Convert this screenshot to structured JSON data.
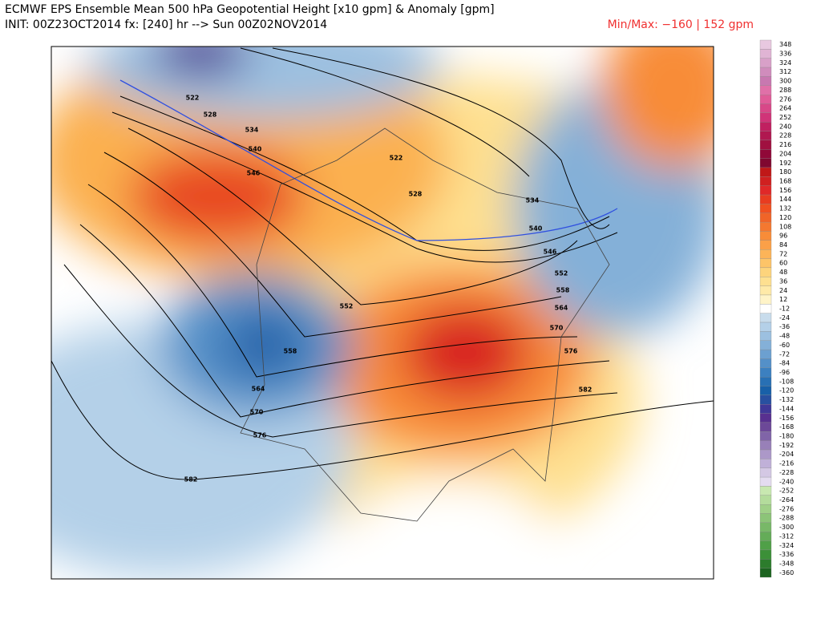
{
  "header": {
    "title": "ECMWF EPS Ensemble Mean 500 hPa Geopotential Height [x10 gpm] & Anomaly [gpm]",
    "init": "INIT: 00Z23OCT2014 fx: [240] hr --> Sun 00Z02NOV2014",
    "minmax": "Min/Max:  −160 |  152 gpm"
  },
  "colorbar": {
    "levels": [
      {
        "value": 348,
        "color": "#e8c8e0"
      },
      {
        "value": 336,
        "color": "#e0b4d4"
      },
      {
        "value": 324,
        "color": "#d8a0c8"
      },
      {
        "value": 312,
        "color": "#d08cbc"
      },
      {
        "value": 300,
        "color": "#c878b0"
      },
      {
        "value": 288,
        "color": "#e070a8"
      },
      {
        "value": 276,
        "color": "#e05c98"
      },
      {
        "value": 264,
        "color": "#d84888"
      },
      {
        "value": 252,
        "color": "#d03478"
      },
      {
        "value": 240,
        "color": "#c02060"
      },
      {
        "value": 228,
        "color": "#b01850"
      },
      {
        "value": 216,
        "color": "#a01040"
      },
      {
        "value": 204,
        "color": "#900838"
      },
      {
        "value": 192,
        "color": "#800830"
      },
      {
        "value": 180,
        "color": "#c01818"
      },
      {
        "value": 168,
        "color": "#d02020"
      },
      {
        "value": 156,
        "color": "#e02828"
      },
      {
        "value": 144,
        "color": "#e83c20"
      },
      {
        "value": 132,
        "color": "#f05020"
      },
      {
        "value": 120,
        "color": "#f06428"
      },
      {
        "value": 108,
        "color": "#f47830"
      },
      {
        "value": 96,
        "color": "#f88c38"
      },
      {
        "value": 84,
        "color": "#fba048"
      },
      {
        "value": 72,
        "color": "#fcb458"
      },
      {
        "value": 60,
        "color": "#fdc468"
      },
      {
        "value": 48,
        "color": "#fdd47c"
      },
      {
        "value": 36,
        "color": "#fee090"
      },
      {
        "value": 24,
        "color": "#ffeaa8"
      },
      {
        "value": 12,
        "color": "#fff4c8"
      },
      {
        "value": -12,
        "color": "#ffffff"
      },
      {
        "value": -24,
        "color": "#c8dcec"
      },
      {
        "value": -36,
        "color": "#b4d0e8"
      },
      {
        "value": -48,
        "color": "#9cc0e0"
      },
      {
        "value": -60,
        "color": "#84b0d8"
      },
      {
        "value": -72,
        "color": "#6ca0d0"
      },
      {
        "value": -84,
        "color": "#5490c8"
      },
      {
        "value": -96,
        "color": "#3c80c0"
      },
      {
        "value": -108,
        "color": "#2870b4"
      },
      {
        "value": -120,
        "color": "#1860a8"
      },
      {
        "value": -132,
        "color": "#2850a0"
      },
      {
        "value": -144,
        "color": "#403898"
      },
      {
        "value": -156,
        "color": "#583090"
      },
      {
        "value": -168,
        "color": "#6c4898"
      },
      {
        "value": -180,
        "color": "#8064a8"
      },
      {
        "value": -192,
        "color": "#9880b8"
      },
      {
        "value": -204,
        "color": "#ac98c8"
      },
      {
        "value": -216,
        "color": "#c0b0d8"
      },
      {
        "value": -228,
        "color": "#d4c8e4"
      },
      {
        "value": -240,
        "color": "#e4dcf0"
      },
      {
        "value": -252,
        "color": "#c8e8b0"
      },
      {
        "value": -264,
        "color": "#b4dc9c"
      },
      {
        "value": -276,
        "color": "#a0d088"
      },
      {
        "value": -288,
        "color": "#8cc478"
      },
      {
        "value": -300,
        "color": "#78b868"
      },
      {
        "value": -312,
        "color": "#64ac58"
      },
      {
        "value": -324,
        "color": "#50a048"
      },
      {
        "value": -336,
        "color": "#3c9038"
      },
      {
        "value": -348,
        "color": "#2c7c2c"
      },
      {
        "value": -360,
        "color": "#1c6420"
      }
    ]
  },
  "contour_labels": [
    "522",
    "528",
    "534",
    "540",
    "546",
    "552",
    "558",
    "564",
    "570",
    "576",
    "582",
    "522",
    "528",
    "534",
    "540",
    "546",
    "552",
    "558",
    "564",
    "570",
    "576",
    "582"
  ]
}
